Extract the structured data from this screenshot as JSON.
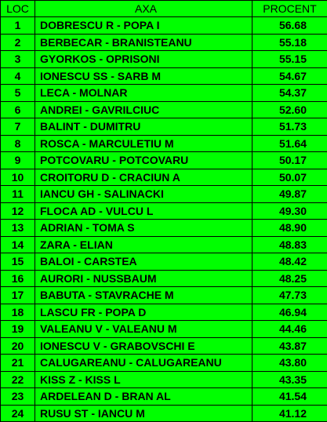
{
  "header": {
    "loc": "LOC",
    "pair": "AXA",
    "percent": "PROCENT"
  },
  "rows": [
    {
      "loc": "1",
      "pair": "DOBRESCU R - POPA I",
      "percent": "56.68"
    },
    {
      "loc": "2",
      "pair": "BERBECAR - BRANISTEANU",
      "percent": "55.18"
    },
    {
      "loc": "3",
      "pair": "GYORKOS - OPRISONI",
      "percent": "55.15"
    },
    {
      "loc": "4",
      "pair": "IONESCU SS - SARB M",
      "percent": "54.67"
    },
    {
      "loc": "5",
      "pair": "LECA - MOLNAR",
      "percent": "54.37"
    },
    {
      "loc": "6",
      "pair": "ANDREI - GAVRILCIUC",
      "percent": "52.60"
    },
    {
      "loc": "7",
      "pair": "BALINT - DUMITRU",
      "percent": "51.73"
    },
    {
      "loc": "8",
      "pair": "ROSCA - MARCULETIU M",
      "percent": "51.64"
    },
    {
      "loc": "9",
      "pair": "POTCOVARU - POTCOVARU",
      "percent": "50.17"
    },
    {
      "loc": "10",
      "pair": "CROITORU D - CRACIUN A",
      "percent": "50.07"
    },
    {
      "loc": "11",
      "pair": "IANCU GH - SALINACKI",
      "percent": "49.87"
    },
    {
      "loc": "12",
      "pair": "FLOCA AD - VULCU L",
      "percent": "49.30"
    },
    {
      "loc": "13",
      "pair": "ADRIAN - TOMA S",
      "percent": "48.90"
    },
    {
      "loc": "14",
      "pair": "ZARA - ELIAN",
      "percent": "48.83"
    },
    {
      "loc": "15",
      "pair": "BALOI - CARSTEA",
      "percent": "48.42"
    },
    {
      "loc": "16",
      "pair": "AURORI - NUSSBAUM",
      "percent": "48.25"
    },
    {
      "loc": "17",
      "pair": "BABUTA - STAVRACHE M",
      "percent": "47.73"
    },
    {
      "loc": "18",
      "pair": "LASCU FR - POPA D",
      "percent": "46.94"
    },
    {
      "loc": "19",
      "pair": "VALEANU V - VALEANU M",
      "percent": "44.46"
    },
    {
      "loc": "20",
      "pair": "IONESCU V - GRABOVSCHI E",
      "percent": "43.87"
    },
    {
      "loc": "21",
      "pair": "CALUGAREANU - CALUGAREANU",
      "percent": "43.80"
    },
    {
      "loc": "22",
      "pair": "KISS Z - KISS L",
      "percent": "43.35"
    },
    {
      "loc": "23",
      "pair": "ARDELEAN D - BRAN AL",
      "percent": "41.54"
    },
    {
      "loc": "24",
      "pair": "RUSU ST - IANCU M",
      "percent": "41.12"
    }
  ]
}
